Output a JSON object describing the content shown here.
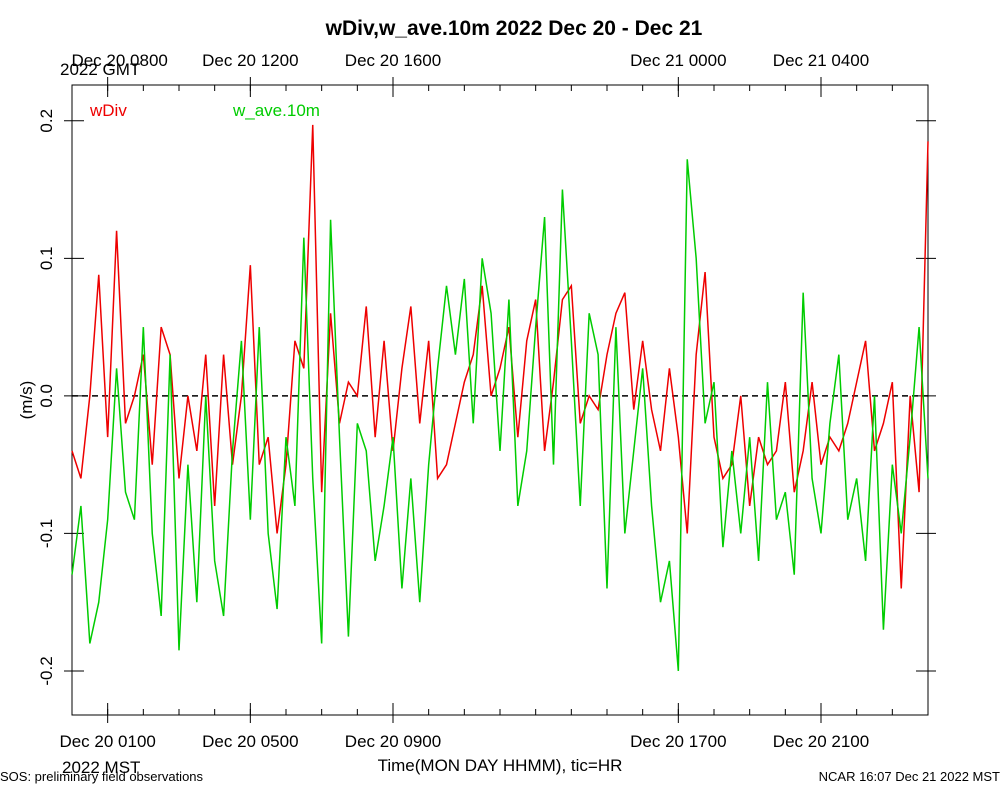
{
  "chart_data": {
    "type": "line",
    "title": "wDiv,w_ave.10m 2022 Dec 20 - Dec 21",
    "x_label": "Time(MON DAY HHMM), tic=HR",
    "y_label": "(m/s)",
    "bottom_year_label": "2022 MST",
    "top_year_label": "2022 GMT",
    "footer_left": "SOS: preliminary field observations",
    "footer_right": "NCAR 16:07 Dec 21 2022 MST",
    "xlim": [
      0,
      24
    ],
    "ylim": [
      -0.232,
      0.226
    ],
    "xticks": [
      {
        "value": 1,
        "label": "Dec 20 0100"
      },
      {
        "value": 5,
        "label": "Dec 20 0500"
      },
      {
        "value": 9,
        "label": "Dec 20 0900"
      },
      {
        "value": 17,
        "label": "Dec 20 1700"
      },
      {
        "value": 21,
        "label": "Dec 20 2100"
      }
    ],
    "x2ticks": [
      {
        "value": 1,
        "label": "Dec 20 0800"
      },
      {
        "value": 5,
        "label": "Dec 20 1200"
      },
      {
        "value": 9,
        "label": "Dec 20 1600"
      },
      {
        "value": 17,
        "label": "Dec 21 0000"
      },
      {
        "value": 21,
        "label": "Dec 21 0400"
      }
    ],
    "xminor_ticks": [
      0,
      1,
      2,
      3,
      4,
      5,
      6,
      7,
      8,
      9,
      10,
      11,
      12,
      13,
      14,
      15,
      16,
      17,
      18,
      19,
      20,
      21,
      22,
      23,
      24
    ],
    "yticks": [
      -0.2,
      -0.1,
      {
        "value": 0,
        "label": "0.0"
      },
      0.1,
      0.2
    ],
    "reference_line": 0,
    "x": [
      0,
      0.25,
      0.5,
      0.75,
      1,
      1.25,
      1.5,
      1.75,
      2,
      2.25,
      2.5,
      2.75,
      3,
      3.25,
      3.5,
      3.75,
      4,
      4.25,
      4.5,
      4.75,
      5,
      5.25,
      5.5,
      5.75,
      6,
      6.25,
      6.5,
      6.75,
      7,
      7.25,
      7.5,
      7.75,
      8,
      8.25,
      8.5,
      8.75,
      9,
      9.25,
      9.5,
      9.75,
      10,
      10.25,
      10.5,
      10.75,
      11,
      11.25,
      11.5,
      11.75,
      12,
      12.25,
      12.5,
      12.75,
      13,
      13.25,
      13.5,
      13.75,
      14,
      14.25,
      14.5,
      14.75,
      15,
      15.25,
      15.5,
      15.75,
      16,
      16.25,
      16.5,
      16.75,
      17,
      17.25,
      17.5,
      17.75,
      18,
      18.25,
      18.5,
      18.75,
      19,
      19.25,
      19.5,
      19.75,
      20,
      20.25,
      20.5,
      20.75,
      21,
      21.25,
      21.5,
      21.75,
      22,
      22.25,
      22.5,
      22.75,
      23,
      23.25,
      23.5,
      23.75,
      24
    ],
    "series": [
      {
        "name": "wDiv",
        "color": "#ee0000",
        "values": [
          -0.04,
          -0.06,
          0.0,
          0.088,
          -0.03,
          0.12,
          -0.02,
          0.0,
          0.03,
          -0.05,
          0.05,
          0.03,
          -0.06,
          0.0,
          -0.04,
          0.03,
          -0.08,
          0.03,
          -0.05,
          0.0,
          0.095,
          -0.05,
          -0.03,
          -0.1,
          -0.05,
          0.04,
          0.02,
          0.197,
          -0.07,
          0.06,
          -0.02,
          0.01,
          0.0,
          0.065,
          -0.03,
          0.04,
          -0.04,
          0.02,
          0.065,
          -0.02,
          0.04,
          -0.06,
          -0.05,
          -0.02,
          0.01,
          0.03,
          0.08,
          0.0,
          0.02,
          0.05,
          -0.03,
          0.04,
          0.07,
          -0.04,
          0.01,
          0.07,
          0.08,
          -0.02,
          0.0,
          -0.01,
          0.03,
          0.06,
          0.075,
          -0.01,
          0.04,
          -0.01,
          -0.04,
          0.02,
          -0.03,
          -0.1,
          0.03,
          0.09,
          -0.03,
          -0.06,
          -0.05,
          0.0,
          -0.08,
          -0.03,
          -0.05,
          -0.04,
          0.01,
          -0.07,
          -0.04,
          0.01,
          -0.05,
          -0.03,
          -0.04,
          -0.02,
          0.01,
          0.04,
          -0.04,
          -0.02,
          0.01,
          -0.14,
          0.0,
          -0.07,
          0.185
        ]
      },
      {
        "name": "w_ave.10m",
        "color": "#00cc00",
        "values": [
          -0.13,
          -0.08,
          -0.18,
          -0.15,
          -0.09,
          0.02,
          -0.07,
          -0.09,
          0.05,
          -0.1,
          -0.16,
          0.03,
          -0.185,
          -0.05,
          -0.15,
          0.0,
          -0.12,
          -0.16,
          -0.04,
          0.04,
          -0.09,
          0.05,
          -0.1,
          -0.155,
          -0.03,
          -0.08,
          0.115,
          -0.06,
          -0.18,
          0.128,
          -0.03,
          -0.175,
          -0.02,
          -0.04,
          -0.12,
          -0.08,
          -0.03,
          -0.14,
          -0.06,
          -0.15,
          -0.05,
          0.02,
          0.08,
          0.03,
          0.085,
          -0.02,
          0.1,
          0.06,
          -0.04,
          0.07,
          -0.08,
          -0.04,
          0.05,
          0.13,
          -0.05,
          0.15,
          0.04,
          -0.08,
          0.06,
          0.03,
          -0.14,
          0.05,
          -0.1,
          -0.04,
          0.02,
          -0.08,
          -0.15,
          -0.12,
          -0.2,
          0.172,
          0.1,
          -0.02,
          0.01,
          -0.11,
          -0.04,
          -0.1,
          -0.03,
          -0.12,
          0.01,
          -0.09,
          -0.07,
          -0.13,
          0.075,
          -0.06,
          -0.1,
          -0.02,
          0.03,
          -0.09,
          -0.06,
          -0.12,
          0.0,
          -0.17,
          -0.05,
          -0.1,
          -0.03,
          0.05,
          -0.06
        ]
      }
    ]
  }
}
